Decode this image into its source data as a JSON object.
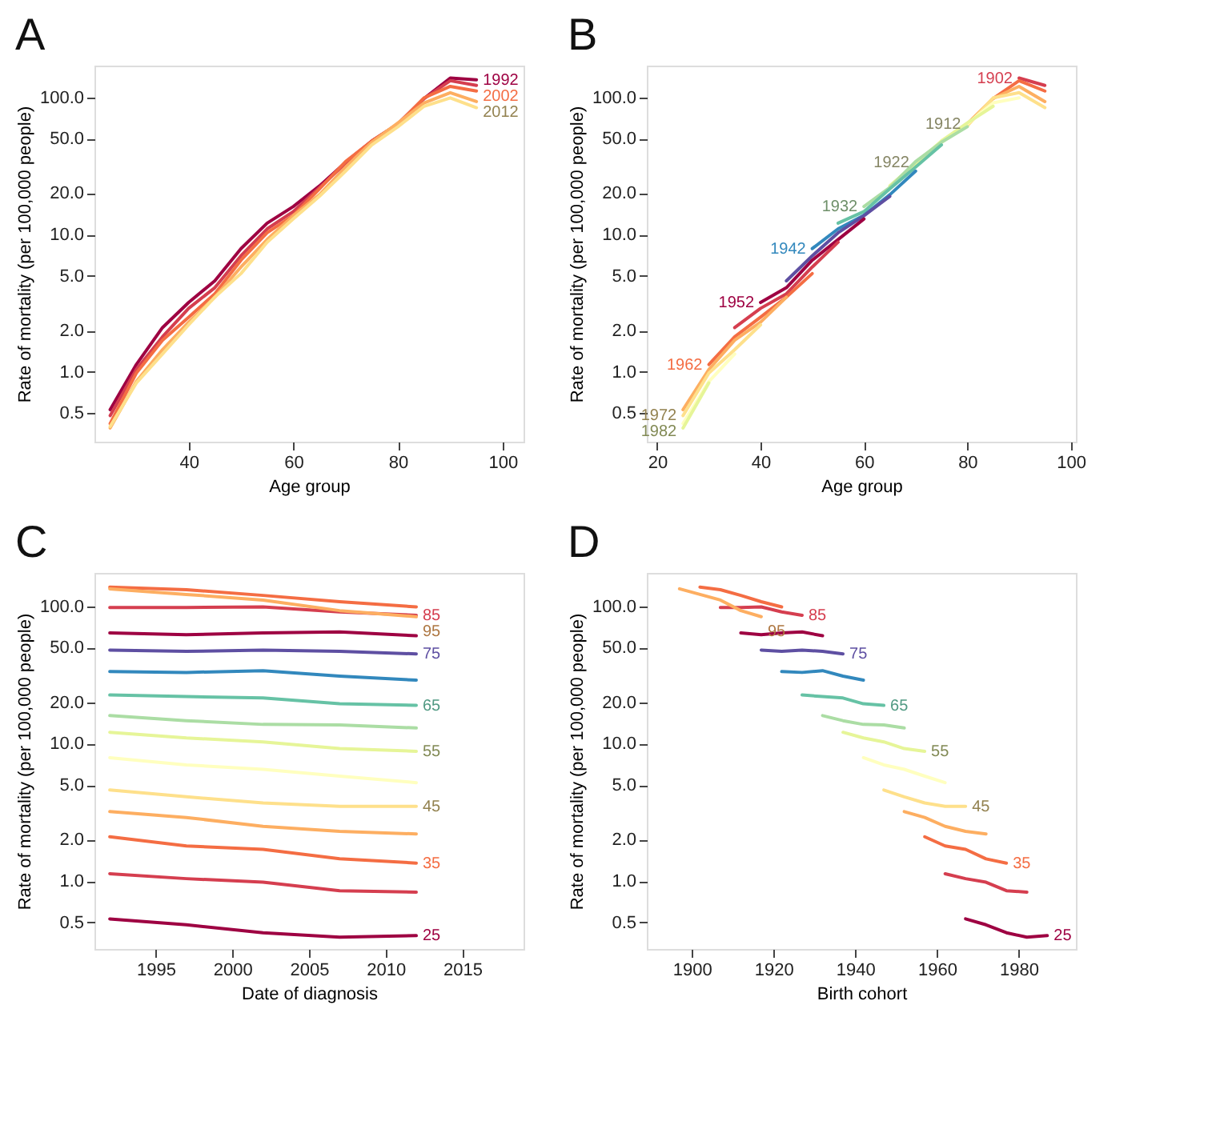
{
  "chart_data": [
    {
      "type": "line",
      "title": "A",
      "xlabel": "Age group",
      "ylabel": "Rate of mortality (per 100,000 people)",
      "log": "y",
      "x": [
        25,
        30,
        35,
        40,
        45,
        50,
        55,
        60,
        65,
        70,
        75,
        80,
        85,
        90,
        95
      ],
      "xlim": [
        22,
        104
      ],
      "xticks": [
        40,
        60,
        80,
        100
      ],
      "ylim": [
        0.31,
        170
      ],
      "yticks": [
        {
          "value": 0.5,
          "label": "0.5"
        },
        {
          "value": 1,
          "label": "1.0"
        },
        {
          "value": 2,
          "label": "2.0"
        },
        {
          "value": 5,
          "label": "5.0"
        },
        {
          "value": 10,
          "label": "10.0"
        },
        {
          "value": 20,
          "label": "20.0"
        },
        {
          "value": 50,
          "label": "50.0"
        },
        {
          "value": 100,
          "label": "100.0"
        }
      ],
      "series": [
        {
          "color": "#9e0142",
          "values": [
            0.53,
            1.13,
            2.1,
            3.2,
            4.6,
            7.9,
            12.1,
            16,
            22.6,
            33.5,
            48,
            64,
            98,
            138,
            134
          ]
        },
        {
          "color": "#d53e4f",
          "values": [
            0.48,
            1.04,
            1.8,
            2.9,
            4.1,
            7.0,
            11,
            14.7,
            22,
            33,
            47,
            62,
            98,
            132,
            122
          ]
        },
        {
          "color": "#f46d43",
          "values": [
            0.42,
            0.98,
            1.7,
            2.5,
            3.7,
            6.5,
            10.3,
            13.8,
            21.5,
            34,
            48,
            64,
            99,
            120,
            111
          ]
        },
        {
          "color": "#fdae61",
          "values": [
            0.39,
            0.85,
            1.45,
            2.3,
            3.5,
            5.8,
            9.2,
            13.7,
            19.5,
            31,
            47,
            65,
            91,
            108,
            93
          ]
        },
        {
          "color": "#fee08b",
          "values": [
            0.4,
            0.83,
            1.35,
            2.2,
            3.5,
            5.2,
            8.8,
            13,
            19,
            29,
            45,
            61,
            86,
            99,
            84
          ]
        }
      ],
      "annotations": [
        {
          "text": "1992",
          "x": 95,
          "y": 134
        },
        {
          "text": "2002",
          "x": 95,
          "y": 111
        },
        {
          "text": "2012",
          "x": 95,
          "y": 84
        }
      ]
    },
    {
      "type": "line",
      "title": "B",
      "xlabel": "Age group",
      "ylabel": "Rate of mortality (per 100,000 people)",
      "log": "y",
      "xlim": [
        18,
        101
      ],
      "xticks": [
        20,
        40,
        60,
        80,
        100
      ],
      "ylim": [
        0.31,
        170
      ],
      "yticks": [
        {
          "value": 0.5,
          "label": "0.5"
        },
        {
          "value": 1,
          "label": "1.0"
        },
        {
          "value": 2,
          "label": "2.0"
        },
        {
          "value": 5,
          "label": "5.0"
        },
        {
          "value": 10,
          "label": "10.0"
        },
        {
          "value": 20,
          "label": "20.0"
        },
        {
          "value": 50,
          "label": "50.0"
        },
        {
          "value": 100,
          "label": "100.0"
        }
      ],
      "series": [
        {
          "color": "#d53e4f",
          "x": [
            90,
            95
          ],
          "values": [
            138,
            122
          ]
        },
        {
          "color": "#f46d43",
          "x": [
            85,
            90,
            95
          ],
          "values": [
            98,
            132,
            111
          ]
        },
        {
          "color": "#fdae61",
          "x": [
            80,
            85,
            90,
            95
          ],
          "values": [
            64,
            98,
            120,
            93
          ]
        },
        {
          "color": "#fee08b",
          "x": [
            75,
            80,
            85,
            90,
            95
          ],
          "values": [
            48,
            62,
            99,
            108,
            84
          ]
        },
        {
          "color": "#ffffbf",
          "x": [
            70,
            75,
            80,
            85,
            90
          ],
          "values": [
            33.5,
            47,
            64,
            91,
            99
          ]
        },
        {
          "color": "#e6f598",
          "x": [
            65,
            70,
            75,
            80,
            85
          ],
          "values": [
            22.6,
            33,
            48,
            65,
            86
          ]
        },
        {
          "color": "#abdda4",
          "x": [
            60,
            65,
            70,
            75,
            80
          ],
          "values": [
            16,
            22,
            34,
            47,
            61
          ]
        },
        {
          "color": "#66c2a5",
          "x": [
            55,
            60,
            65,
            70,
            75
          ],
          "values": [
            12.1,
            14.7,
            21.5,
            31,
            45
          ]
        },
        {
          "color": "#3288bd",
          "x": [
            50,
            55,
            60,
            65,
            70
          ],
          "values": [
            7.9,
            11,
            13.8,
            19.5,
            29
          ]
        },
        {
          "color": "#5e4fa2",
          "x": [
            45,
            50,
            55,
            60,
            65
          ],
          "values": [
            4.6,
            7.0,
            10.3,
            13.7,
            19
          ]
        },
        {
          "color": "#9e0142",
          "x": [
            40,
            45,
            50,
            55,
            60
          ],
          "values": [
            3.2,
            4.1,
            6.5,
            9.2,
            13
          ]
        },
        {
          "color": "#d53e4f",
          "x": [
            35,
            40,
            45,
            50,
            55
          ],
          "values": [
            2.1,
            2.9,
            3.7,
            5.8,
            8.8
          ]
        },
        {
          "color": "#f46d43",
          "x": [
            30,
            35,
            40,
            45,
            50
          ],
          "values": [
            1.13,
            1.8,
            2.5,
            3.5,
            5.2
          ]
        },
        {
          "color": "#fdae61",
          "x": [
            25,
            30,
            35,
            40,
            45
          ],
          "values": [
            0.53,
            1.04,
            1.7,
            2.3,
            3.5
          ]
        },
        {
          "color": "#fee08b",
          "x": [
            25,
            30,
            35,
            40
          ],
          "values": [
            0.48,
            0.98,
            1.45,
            2.2
          ]
        },
        {
          "color": "#ffffbf",
          "x": [
            25,
            30,
            35
          ],
          "values": [
            0.42,
            0.85,
            1.35
          ]
        },
        {
          "color": "#e6f598",
          "x": [
            25,
            30
          ],
          "values": [
            0.39,
            0.83
          ]
        }
      ],
      "annotations": [
        {
          "text": "1902",
          "x": 90,
          "y": 138
        },
        {
          "text": "1912",
          "x": 80,
          "y": 64
        },
        {
          "text": "1922",
          "x": 70,
          "y": 33.5
        },
        {
          "text": "1932",
          "x": 60,
          "y": 16
        },
        {
          "text": "1942",
          "x": 50,
          "y": 7.9
        },
        {
          "text": "1952",
          "x": 40,
          "y": 3.2
        },
        {
          "text": "1962",
          "x": 30,
          "y": 1.13
        },
        {
          "text": "1972",
          "x": 25,
          "y": 0.48
        },
        {
          "text": "1982",
          "x": 25,
          "y": 0.39
        }
      ]
    },
    {
      "type": "line",
      "title": "C",
      "xlabel": "Date of diagnosis",
      "ylabel": "Rate of mortality (per 100,000 people)",
      "log": "y",
      "x": [
        1992,
        1997,
        2002,
        2007,
        2012
      ],
      "xlim": [
        1991,
        2019
      ],
      "xticks": [
        1995,
        2000,
        2005,
        2010,
        2015
      ],
      "ylim": [
        0.32,
        175
      ],
      "yticks": [
        {
          "value": 0.5,
          "label": "0.5"
        },
        {
          "value": 1,
          "label": "1.0"
        },
        {
          "value": 2,
          "label": "2.0"
        },
        {
          "value": 5,
          "label": "5.0"
        },
        {
          "value": 10,
          "label": "10.0"
        },
        {
          "value": 20,
          "label": "20.0"
        },
        {
          "value": 50,
          "label": "50.0"
        },
        {
          "value": 100,
          "label": "100.0"
        }
      ],
      "series": [
        {
          "color": "#9e0142",
          "values": [
            0.53,
            0.48,
            0.42,
            0.39,
            0.4
          ]
        },
        {
          "color": "#d53e4f",
          "values": [
            1.13,
            1.04,
            0.98,
            0.85,
            0.83
          ]
        },
        {
          "color": "#f46d43",
          "values": [
            2.1,
            1.8,
            1.7,
            1.45,
            1.35
          ]
        },
        {
          "color": "#fdae61",
          "values": [
            3.2,
            2.9,
            2.5,
            2.3,
            2.2
          ]
        },
        {
          "color": "#fee08b",
          "values": [
            4.6,
            4.1,
            3.7,
            3.5,
            3.5
          ]
        },
        {
          "color": "#ffffbf",
          "values": [
            7.9,
            7.0,
            6.5,
            5.8,
            5.2
          ]
        },
        {
          "color": "#e6f598",
          "values": [
            12.1,
            11,
            10.3,
            9.2,
            8.8
          ]
        },
        {
          "color": "#abdda4",
          "values": [
            16,
            14.7,
            13.8,
            13.7,
            13
          ]
        },
        {
          "color": "#66c2a5",
          "values": [
            22.6,
            22,
            21.5,
            19.5,
            19
          ]
        },
        {
          "color": "#3288bd",
          "values": [
            33.5,
            33,
            34,
            31,
            29
          ]
        },
        {
          "color": "#5e4fa2",
          "values": [
            48,
            47,
            48,
            47,
            45
          ]
        },
        {
          "color": "#9e0142",
          "values": [
            64,
            62,
            64,
            65,
            61
          ]
        },
        {
          "color": "#d53e4f",
          "values": [
            98,
            98,
            99,
            91,
            86
          ]
        },
        {
          "color": "#f46d43",
          "values": [
            138,
            132,
            120,
            108,
            99
          ]
        },
        {
          "color": "#fdae61",
          "values": [
            134,
            122,
            111,
            93,
            84
          ]
        }
      ],
      "annotations": [
        {
          "text": "25",
          "x": 2012,
          "y": 0.4
        },
        {
          "text": "35",
          "x": 2012,
          "y": 1.35
        },
        {
          "text": "45",
          "x": 2012,
          "y": 3.5
        },
        {
          "text": "55",
          "x": 2012,
          "y": 8.8
        },
        {
          "text": "65",
          "x": 2012,
          "y": 19
        },
        {
          "text": "75",
          "x": 2012,
          "y": 45
        },
        {
          "text": "85",
          "x": 2012,
          "y": 86
        },
        {
          "text": "95",
          "x": 2012,
          "y": 84
        }
      ]
    },
    {
      "type": "line",
      "title": "D",
      "xlabel": "Birth cohort",
      "ylabel": "Rate of mortality (per 100,000 people)",
      "log": "y",
      "xlim": [
        1889,
        1994
      ],
      "xticks": [
        1900,
        1920,
        1940,
        1960,
        1980
      ],
      "ylim": [
        0.32,
        175
      ],
      "yticks": [
        {
          "value": 0.5,
          "label": "0.5"
        },
        {
          "value": 1,
          "label": "1.0"
        },
        {
          "value": 2,
          "label": "2.0"
        },
        {
          "value": 5,
          "label": "5.0"
        },
        {
          "value": 10,
          "label": "10.0"
        },
        {
          "value": 20,
          "label": "20.0"
        },
        {
          "value": 50,
          "label": "50.0"
        },
        {
          "value": 100,
          "label": "100.0"
        }
      ],
      "series": [
        {
          "color": "#9e0142",
          "x": [
            1967,
            1972,
            1977,
            1982,
            1987
          ],
          "values": [
            0.53,
            0.48,
            0.42,
            0.39,
            0.4
          ]
        },
        {
          "color": "#d53e4f",
          "x": [
            1962,
            1967,
            1972,
            1977,
            1982
          ],
          "values": [
            1.13,
            1.04,
            0.98,
            0.85,
            0.83
          ]
        },
        {
          "color": "#f46d43",
          "x": [
            1957,
            1962,
            1967,
            1972,
            1977
          ],
          "values": [
            2.1,
            1.8,
            1.7,
            1.45,
            1.35
          ]
        },
        {
          "color": "#fdae61",
          "x": [
            1952,
            1957,
            1962,
            1967,
            1972
          ],
          "values": [
            3.2,
            2.9,
            2.5,
            2.3,
            2.2
          ]
        },
        {
          "color": "#fee08b",
          "x": [
            1947,
            1952,
            1957,
            1962,
            1967
          ],
          "values": [
            4.6,
            4.1,
            3.7,
            3.5,
            3.5
          ]
        },
        {
          "color": "#ffffbf",
          "x": [
            1942,
            1947,
            1952,
            1957,
            1962
          ],
          "values": [
            7.9,
            7.0,
            6.5,
            5.8,
            5.2
          ]
        },
        {
          "color": "#e6f598",
          "x": [
            1937,
            1942,
            1947,
            1952,
            1957
          ],
          "values": [
            12.1,
            11,
            10.3,
            9.2,
            8.8
          ]
        },
        {
          "color": "#abdda4",
          "x": [
            1932,
            1937,
            1942,
            1947,
            1952
          ],
          "values": [
            16,
            14.7,
            13.8,
            13.7,
            13
          ]
        },
        {
          "color": "#66c2a5",
          "x": [
            1927,
            1932,
            1937,
            1942,
            1947
          ],
          "values": [
            22.6,
            22,
            21.5,
            19.5,
            19
          ]
        },
        {
          "color": "#3288bd",
          "x": [
            1922,
            1927,
            1932,
            1937,
            1942
          ],
          "values": [
            33.5,
            33,
            34,
            31,
            29
          ]
        },
        {
          "color": "#5e4fa2",
          "x": [
            1917,
            1922,
            1927,
            1932,
            1937
          ],
          "values": [
            48,
            47,
            48,
            47,
            45
          ]
        },
        {
          "color": "#9e0142",
          "x": [
            1912,
            1917,
            1922,
            1927,
            1932
          ],
          "values": [
            64,
            62,
            64,
            65,
            61
          ]
        },
        {
          "color": "#d53e4f",
          "x": [
            1907,
            1912,
            1917,
            1922,
            1927
          ],
          "values": [
            98,
            98,
            99,
            91,
            86
          ]
        },
        {
          "color": "#f46d43",
          "x": [
            1902,
            1907,
            1912,
            1917,
            1922
          ],
          "values": [
            138,
            132,
            120,
            108,
            99
          ]
        },
        {
          "color": "#fdae61",
          "x": [
            1897,
            1902,
            1907,
            1912,
            1917
          ],
          "values": [
            134,
            122,
            111,
            93,
            84
          ]
        }
      ],
      "annotations": [
        {
          "text": "25",
          "x": 1987,
          "y": 0.4
        },
        {
          "text": "35",
          "x": 1977,
          "y": 1.35
        },
        {
          "text": "45",
          "x": 1967,
          "y": 3.5
        },
        {
          "text": "55",
          "x": 1957,
          "y": 8.8
        },
        {
          "text": "65",
          "x": 1947,
          "y": 19
        },
        {
          "text": "75",
          "x": 1937,
          "y": 45
        },
        {
          "text": "85",
          "x": 1927,
          "y": 86
        },
        {
          "text": "95",
          "x": 1917,
          "y": 84
        }
      ]
    }
  ]
}
